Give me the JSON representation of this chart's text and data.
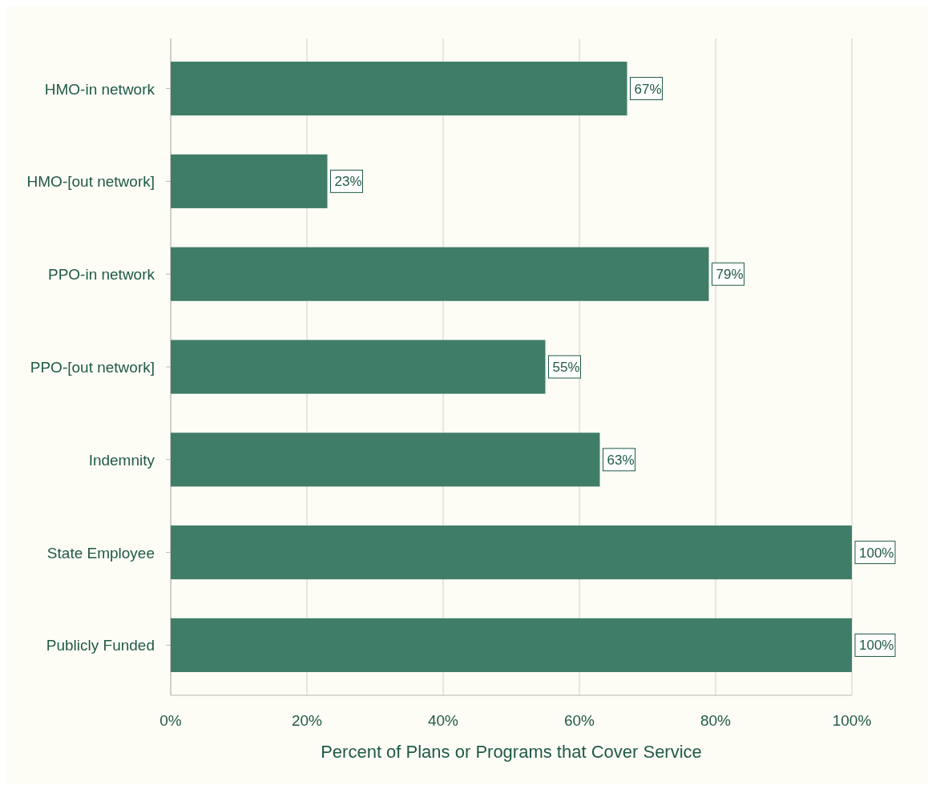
{
  "chart_data": {
    "type": "bar",
    "orientation": "horizontal",
    "categories": [
      "HMO-in network",
      "HMO-[out network]",
      "PPO-in network",
      "PPO-[out network]",
      "Indemnity",
      "State Employee",
      "Publicly Funded"
    ],
    "values": [
      67,
      23,
      79,
      55,
      63,
      100,
      100
    ],
    "value_labels": [
      "67%",
      "23%",
      "79%",
      "55%",
      "63%",
      "100%",
      "100%"
    ],
    "color": "#3f7d68",
    "xlabel": "Percent of Plans or Programs that Cover Service",
    "xlim": [
      0,
      100
    ],
    "xticks": [
      {
        "value": 0,
        "label": "0%"
      },
      {
        "value": 20,
        "label": "20%"
      },
      {
        "value": 40,
        "label": "40%"
      },
      {
        "value": 60,
        "label": "60%"
      },
      {
        "value": 80,
        "label": "80%"
      },
      {
        "value": 100,
        "label": "100%"
      }
    ],
    "grid": "x"
  }
}
